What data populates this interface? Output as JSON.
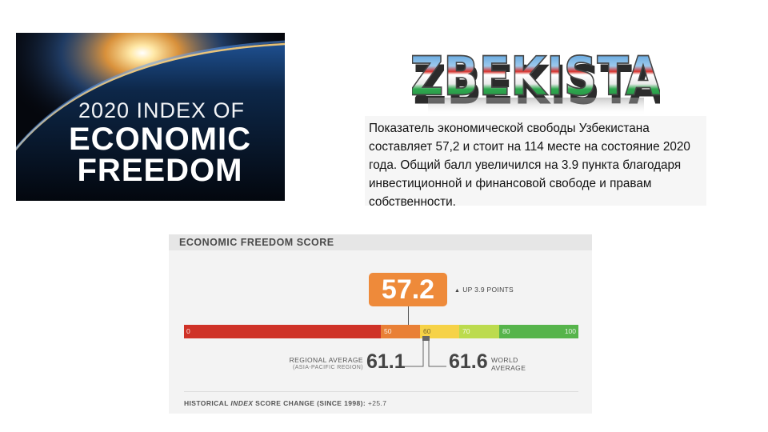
{
  "banner": {
    "line1": "2020 INDEX OF",
    "line2": "ECONOMIC",
    "line3": "FREEDOM"
  },
  "wordart": {
    "text": "UZBEKISTAN",
    "colors": [
      "#3a8fd6",
      "#ffffff",
      "#d6312b",
      "#2fa84f"
    ]
  },
  "description": "Показатель экономической свободы Узбекистана составляет 57,2 и стоит на 114 месте на состояние 2020 года.  Общий балл увеличился на 3.9 пункта благодаря инвестиционной и финансовой свободе и правам собственности.",
  "panel": {
    "title": "ECONOMIC FREEDOM SCORE",
    "score": "57.2",
    "change": "UP 3.9 POINTS",
    "scale_labels": [
      "0",
      "50",
      "60",
      "70",
      "80",
      "100"
    ],
    "regional_label": "REGIONAL AVERAGE",
    "regional_sub": "(ASIA-PACIFIC REGION)",
    "regional_value": "61.1",
    "world_value": "61.6",
    "world_label_1": "WORLD",
    "world_label_2": "AVERAGE",
    "historical_prefix": "HISTORICAL ",
    "historical_index": "INDEX",
    "historical_rest": " SCORE CHANGE (SINCE 1998): ",
    "historical_value": "+25.7"
  }
}
